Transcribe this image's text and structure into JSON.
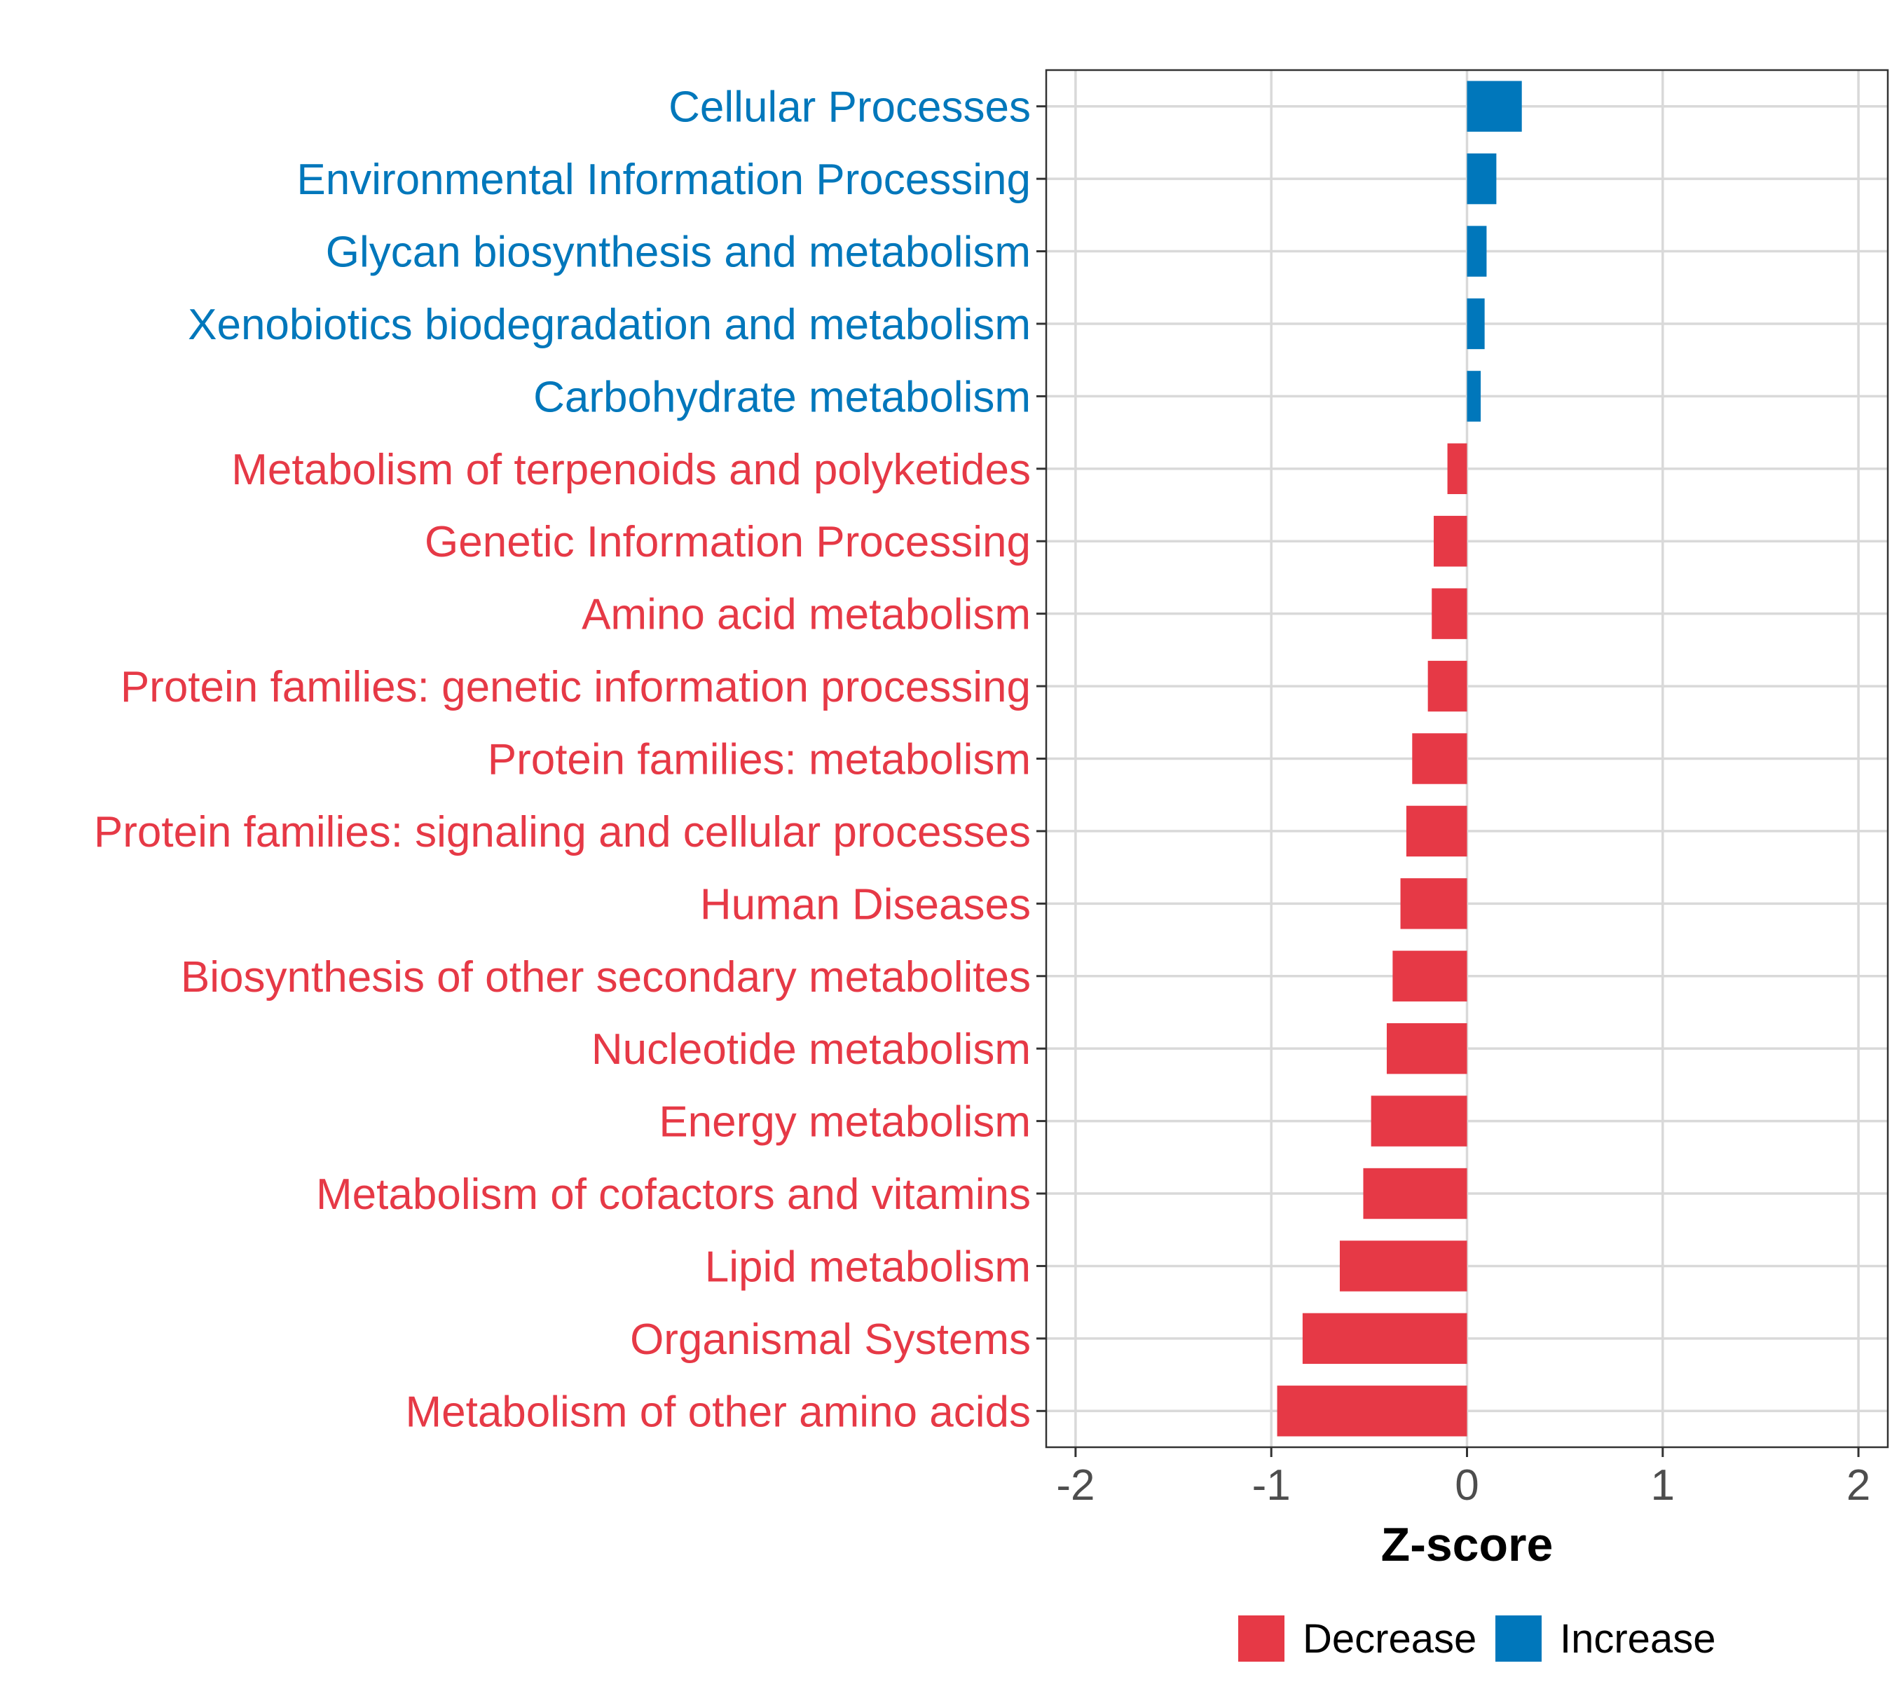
{
  "chart_data": {
    "type": "bar",
    "orientation": "horizontal",
    "title": "",
    "xlabel": "Z-score",
    "ylabel": "",
    "xlim": [
      -2.15,
      2.15
    ],
    "xticks": [
      -2,
      -1,
      0,
      1,
      2
    ],
    "xtick_labels": [
      "-2",
      "-1",
      "0",
      "1",
      "2"
    ],
    "grid": true,
    "categories": [
      "Cellular Processes",
      "Environmental Information Processing",
      "Glycan biosynthesis and metabolism",
      "Xenobiotics biodegradation and metabolism",
      "Carbohydrate metabolism",
      "Metabolism of terpenoids and polyketides",
      "Genetic Information Processing",
      "Amino acid metabolism",
      "Protein families: genetic information processing",
      "Protein families: metabolism",
      "Protein families: signaling and cellular processes",
      "Human Diseases",
      "Biosynthesis of other secondary metabolites",
      "Nucleotide metabolism",
      "Energy metabolism",
      "Metabolism of cofactors and vitamins",
      "Lipid metabolism",
      "Organismal Systems",
      "Metabolism of other amino acids"
    ],
    "values": [
      0.28,
      0.15,
      0.1,
      0.09,
      0.07,
      -0.1,
      -0.17,
      -0.18,
      -0.2,
      -0.28,
      -0.31,
      -0.34,
      -0.38,
      -0.41,
      -0.49,
      -0.53,
      -0.65,
      -0.84,
      -0.97
    ],
    "groups": [
      "Increase",
      "Increase",
      "Increase",
      "Increase",
      "Increase",
      "Decrease",
      "Decrease",
      "Decrease",
      "Decrease",
      "Decrease",
      "Decrease",
      "Decrease",
      "Decrease",
      "Decrease",
      "Decrease",
      "Decrease",
      "Decrease",
      "Decrease",
      "Decrease"
    ],
    "legend": {
      "position": "bottom",
      "entries": [
        {
          "label": "Decrease",
          "color": "#E63946"
        },
        {
          "label": "Increase",
          "color": "#0077BB"
        }
      ]
    },
    "colors": {
      "Decrease": "#E63946",
      "Increase": "#0077BB"
    }
  }
}
